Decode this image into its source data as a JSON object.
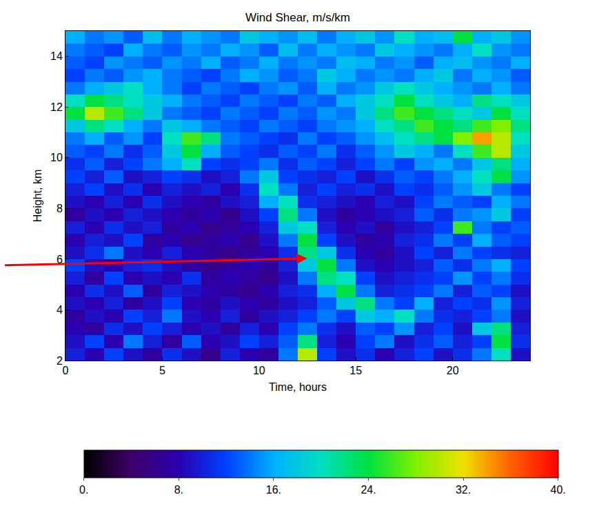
{
  "chart_data": {
    "type": "heatmap",
    "title": "Wind Shear, m/s/km",
    "xlabel": "Time, hours",
    "ylabel": "Height, km",
    "x": [
      0.5,
      1.5,
      2.5,
      3.5,
      4.5,
      5.5,
      6.5,
      7.5,
      8.5,
      9.5,
      10.5,
      11.5,
      12.5,
      13.5,
      14.5,
      15.5,
      16.5,
      17.5,
      18.5,
      19.5,
      20.5,
      21.5,
      22.5,
      23.5
    ],
    "y": [
      2.25,
      2.75,
      3.25,
      3.75,
      4.25,
      4.75,
      5.25,
      5.75,
      6.25,
      6.75,
      7.25,
      7.75,
      8.25,
      8.75,
      9.25,
      9.75,
      10.25,
      10.75,
      11.25,
      11.75,
      12.25,
      12.75,
      13.25,
      13.75,
      14.25,
      14.75
    ],
    "z": [
      [
        10,
        8,
        12,
        9,
        7,
        11,
        9,
        6,
        10,
        8,
        7,
        14,
        30,
        12,
        9,
        11,
        8,
        10,
        12,
        9,
        11,
        14,
        20,
        9
      ],
      [
        9,
        12,
        8,
        14,
        10,
        7,
        13,
        8,
        9,
        12,
        10,
        13,
        22,
        10,
        8,
        12,
        14,
        9,
        11,
        13,
        10,
        12,
        24,
        11
      ],
      [
        8,
        7,
        11,
        9,
        12,
        10,
        8,
        9,
        7,
        10,
        8,
        12,
        14,
        11,
        9,
        13,
        12,
        15,
        10,
        12,
        9,
        18,
        22,
        10
      ],
      [
        7,
        9,
        8,
        12,
        10,
        14,
        9,
        8,
        10,
        7,
        9,
        10,
        12,
        14,
        12,
        18,
        16,
        20,
        14,
        11,
        10,
        12,
        14,
        9
      ],
      [
        9,
        8,
        10,
        7,
        9,
        12,
        8,
        7,
        9,
        8,
        7,
        9,
        10,
        13,
        18,
        22,
        14,
        12,
        16,
        10,
        12,
        11,
        15,
        10
      ],
      [
        8,
        11,
        9,
        13,
        7,
        10,
        9,
        8,
        7,
        6,
        8,
        10,
        11,
        16,
        24,
        14,
        10,
        11,
        12,
        14,
        10,
        13,
        12,
        9
      ],
      [
        10,
        7,
        12,
        8,
        9,
        8,
        11,
        7,
        8,
        7,
        6,
        9,
        14,
        22,
        20,
        12,
        9,
        10,
        11,
        12,
        15,
        12,
        14,
        11
      ],
      [
        12,
        9,
        8,
        10,
        11,
        9,
        7,
        6,
        7,
        8,
        7,
        10,
        18,
        24,
        14,
        9,
        8,
        9,
        10,
        13,
        11,
        14,
        16,
        12
      ],
      [
        9,
        11,
        14,
        9,
        8,
        10,
        8,
        7,
        6,
        7,
        8,
        11,
        22,
        18,
        11,
        8,
        7,
        9,
        12,
        10,
        14,
        12,
        11,
        10
      ],
      [
        8,
        10,
        9,
        12,
        7,
        8,
        6,
        7,
        8,
        6,
        9,
        14,
        24,
        12,
        9,
        7,
        8,
        10,
        11,
        14,
        12,
        16,
        13,
        12
      ],
      [
        10,
        8,
        11,
        9,
        10,
        7,
        8,
        6,
        7,
        8,
        10,
        18,
        20,
        10,
        8,
        9,
        7,
        9,
        10,
        12,
        26,
        14,
        12,
        13
      ],
      [
        7,
        9,
        8,
        10,
        9,
        8,
        7,
        8,
        6,
        9,
        12,
        22,
        14,
        9,
        7,
        8,
        9,
        10,
        13,
        11,
        14,
        15,
        18,
        12
      ],
      [
        9,
        8,
        10,
        8,
        11,
        9,
        8,
        7,
        9,
        10,
        16,
        20,
        11,
        10,
        9,
        8,
        10,
        9,
        12,
        14,
        13,
        12,
        16,
        14
      ],
      [
        10,
        12,
        9,
        11,
        8,
        10,
        9,
        10,
        8,
        11,
        20,
        14,
        10,
        12,
        10,
        11,
        9,
        12,
        11,
        13,
        15,
        18,
        14,
        12
      ],
      [
        12,
        10,
        13,
        9,
        10,
        12,
        11,
        9,
        10,
        14,
        18,
        12,
        11,
        10,
        12,
        9,
        11,
        13,
        12,
        14,
        16,
        20,
        24,
        15
      ],
      [
        11,
        13,
        10,
        12,
        14,
        16,
        20,
        12,
        11,
        12,
        14,
        11,
        13,
        12,
        10,
        12,
        14,
        12,
        15,
        16,
        14,
        18,
        22,
        16
      ],
      [
        13,
        12,
        14,
        11,
        13,
        18,
        24,
        16,
        13,
        12,
        11,
        13,
        12,
        14,
        11,
        13,
        15,
        18,
        16,
        14,
        20,
        26,
        30,
        18
      ],
      [
        14,
        16,
        13,
        15,
        12,
        20,
        26,
        22,
        14,
        13,
        12,
        11,
        14,
        12,
        13,
        15,
        17,
        20,
        22,
        24,
        28,
        34,
        30,
        20
      ],
      [
        18,
        22,
        20,
        16,
        14,
        18,
        16,
        14,
        13,
        12,
        14,
        13,
        12,
        14,
        15,
        16,
        20,
        22,
        26,
        24,
        22,
        26,
        28,
        22
      ],
      [
        24,
        30,
        26,
        22,
        18,
        14,
        13,
        12,
        14,
        13,
        12,
        14,
        13,
        15,
        14,
        18,
        22,
        26,
        24,
        22,
        20,
        18,
        24,
        20
      ],
      [
        20,
        24,
        22,
        20,
        18,
        16,
        14,
        13,
        12,
        14,
        13,
        12,
        14,
        13,
        16,
        18,
        20,
        24,
        20,
        18,
        16,
        22,
        20,
        18
      ],
      [
        14,
        16,
        18,
        20,
        16,
        14,
        12,
        14,
        13,
        12,
        14,
        15,
        13,
        16,
        14,
        15,
        18,
        20,
        18,
        16,
        15,
        14,
        16,
        14
      ],
      [
        12,
        14,
        13,
        15,
        16,
        14,
        13,
        12,
        14,
        16,
        15,
        13,
        14,
        18,
        16,
        14,
        15,
        14,
        16,
        18,
        14,
        16,
        15,
        13
      ],
      [
        13,
        12,
        15,
        14,
        13,
        15,
        14,
        16,
        13,
        14,
        16,
        14,
        15,
        14,
        17,
        16,
        14,
        15,
        13,
        16,
        17,
        15,
        14,
        16
      ],
      [
        14,
        13,
        12,
        16,
        14,
        13,
        15,
        14,
        16,
        15,
        13,
        17,
        14,
        16,
        15,
        14,
        18,
        16,
        15,
        14,
        16,
        20,
        15,
        14
      ],
      [
        16,
        14,
        15,
        13,
        17,
        14,
        16,
        15,
        14,
        18,
        16,
        15,
        17,
        14,
        16,
        18,
        15,
        20,
        16,
        17,
        24,
        16,
        18,
        15
      ]
    ],
    "xlim": [
      0,
      24
    ],
    "xticks": [
      0,
      5,
      10,
      15,
      20
    ],
    "ylim": [
      2,
      15
    ],
    "yticks": [
      2,
      4,
      6,
      8,
      10,
      12,
      14
    ],
    "colorbar": {
      "range": [
        0,
        40
      ],
      "ticks": [
        {
          "value": 0,
          "label": "0."
        },
        {
          "value": 8,
          "label": "8."
        },
        {
          "value": 16,
          "label": "16."
        },
        {
          "value": 24,
          "label": "24."
        },
        {
          "value": 32,
          "label": "32."
        },
        {
          "value": 40,
          "label": "40."
        }
      ]
    }
  }
}
